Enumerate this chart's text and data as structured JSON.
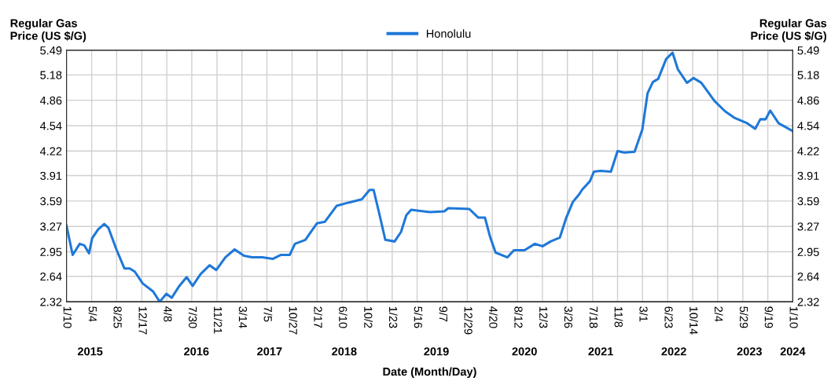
{
  "chart_data": {
    "type": "line",
    "xlabel": "Date (Month/Day)",
    "ylabel": "Regular Gas\nPrice (US $/G)",
    "y2label": "Regular Gas\nPrice (US $/G)",
    "x": [
      "2015-01-10",
      "2015-02-07",
      "2015-03-11",
      "2015-04-01",
      "2015-04-22",
      "2015-05-06",
      "2015-06-02",
      "2015-06-30",
      "2015-07-19",
      "2015-08-24",
      "2015-09-29",
      "2015-10-23",
      "2015-11-15",
      "2015-12-21",
      "2016-02-06",
      "2016-03-07",
      "2016-04-06",
      "2016-04-30",
      "2016-06-04",
      "2016-07-07",
      "2016-08-03",
      "2016-09-08",
      "2016-10-19",
      "2016-11-18",
      "2016-12-29",
      "2017-02-09",
      "2017-03-23",
      "2017-04-28",
      "2017-06-14",
      "2017-07-31",
      "2017-09-05",
      "2017-10-16",
      "2017-11-09",
      "2017-12-26",
      "2018-02-17",
      "2018-03-25",
      "2018-05-17",
      "2018-07-09",
      "2018-09-07",
      "2018-10-13",
      "2018-10-31",
      "2018-11-24",
      "2018-12-23",
      "2019-02-03",
      "2019-03-04",
      "2019-03-28",
      "2019-04-19",
      "2019-05-15",
      "2019-07-13",
      "2019-09-16",
      "2019-10-04",
      "2020-01-07",
      "2020-02-17",
      "2020-03-18",
      "2020-04-11",
      "2020-05-05",
      "2020-06-28",
      "2020-07-27",
      "2020-09-13",
      "2020-10-30",
      "2020-12-04",
      "2021-01-09",
      "2021-02-20",
      "2021-03-21",
      "2021-04-20",
      "2021-05-20",
      "2021-05-31",
      "2021-07-06",
      "2021-07-24",
      "2021-08-23",
      "2021-10-09",
      "2021-11-08",
      "2021-12-08",
      "2022-01-24",
      "2022-02-28",
      "2022-03-24",
      "2022-04-17",
      "2022-05-11",
      "2022-06-16",
      "2022-07-15",
      "2022-08-08",
      "2022-09-18",
      "2022-10-18",
      "2022-11-22",
      "2023-01-21",
      "2023-03-10",
      "2023-04-20",
      "2023-06-18",
      "2023-07-24",
      "2023-08-16",
      "2023-09-09",
      "2023-09-30",
      "2023-11-07",
      "2024-01-10"
    ],
    "series": [
      {
        "name": "Honolulu",
        "color": "#1f78d8",
        "values": [
          3.28,
          2.91,
          3.05,
          3.03,
          2.93,
          3.12,
          3.23,
          3.3,
          3.25,
          2.98,
          2.74,
          2.74,
          2.7,
          2.55,
          2.45,
          2.32,
          2.42,
          2.37,
          2.52,
          2.63,
          2.52,
          2.67,
          2.78,
          2.72,
          2.88,
          2.98,
          2.9,
          2.88,
          2.88,
          2.86,
          2.91,
          2.91,
          3.05,
          3.1,
          3.31,
          3.33,
          3.53,
          3.57,
          3.61,
          3.73,
          3.73,
          3.45,
          3.1,
          3.08,
          3.2,
          3.41,
          3.48,
          3.47,
          3.45,
          3.46,
          3.5,
          3.49,
          3.38,
          3.38,
          3.13,
          2.94,
          2.88,
          2.97,
          2.97,
          3.05,
          3.02,
          3.08,
          3.13,
          3.38,
          3.58,
          3.68,
          3.73,
          3.84,
          3.96,
          3.97,
          3.96,
          4.22,
          4.2,
          4.21,
          4.49,
          4.95,
          5.09,
          5.13,
          5.38,
          5.46,
          5.25,
          5.08,
          5.14,
          5.08,
          4.85,
          4.72,
          4.64,
          4.57,
          4.5,
          4.62,
          4.62,
          4.73,
          4.57,
          4.47
        ]
      }
    ],
    "xlim": [
      "2015-01-10",
      "2024-01-10"
    ],
    "xticks": [
      {
        "value": "2015-01-10",
        "label": "1/10"
      },
      {
        "value": "2015-05-04",
        "label": "5/4"
      },
      {
        "value": "2015-08-25",
        "label": "8/25"
      },
      {
        "value": "2015-12-17",
        "label": "12/17"
      },
      {
        "value": "2016-04-08",
        "label": "4/8"
      },
      {
        "value": "2016-07-30",
        "label": "7/30"
      },
      {
        "value": "2016-11-21",
        "label": "11/21"
      },
      {
        "value": "2017-03-14",
        "label": "3/14"
      },
      {
        "value": "2017-07-05",
        "label": "7/5"
      },
      {
        "value": "2017-10-27",
        "label": "10/27"
      },
      {
        "value": "2018-02-17",
        "label": "2/17"
      },
      {
        "value": "2018-06-10",
        "label": "6/10"
      },
      {
        "value": "2018-10-02",
        "label": "10/2"
      },
      {
        "value": "2019-01-23",
        "label": "1/23"
      },
      {
        "value": "2019-05-16",
        "label": "5/16"
      },
      {
        "value": "2019-09-07",
        "label": "9/7"
      },
      {
        "value": "2019-12-29",
        "label": "12/29"
      },
      {
        "value": "2020-04-20",
        "label": "4/20"
      },
      {
        "value": "2020-08-12",
        "label": "8/12"
      },
      {
        "value": "2020-12-03",
        "label": "12/3"
      },
      {
        "value": "2021-03-26",
        "label": "3/26"
      },
      {
        "value": "2021-07-18",
        "label": "7/18"
      },
      {
        "value": "2021-11-08",
        "label": "11/8"
      },
      {
        "value": "2022-03-01",
        "label": "3/1"
      },
      {
        "value": "2022-06-23",
        "label": "6/23"
      },
      {
        "value": "2022-10-14",
        "label": "10/14"
      },
      {
        "value": "2023-02-04",
        "label": "2/4"
      },
      {
        "value": "2023-05-29",
        "label": "5/29"
      },
      {
        "value": "2023-09-19",
        "label": "9/19"
      },
      {
        "value": "2024-01-10",
        "label": "1/10"
      }
    ],
    "x2lim": [
      "2015-01-10",
      "2024-01-10"
    ],
    "x2ticks": [
      {
        "value": "2015-04-27",
        "label": "2015"
      },
      {
        "value": "2016-08-20",
        "label": "2016"
      },
      {
        "value": "2017-07-17",
        "label": "2017"
      },
      {
        "value": "2018-06-20",
        "label": "2018"
      },
      {
        "value": "2019-08-11",
        "label": "2019"
      },
      {
        "value": "2020-09-13",
        "label": "2020"
      },
      {
        "value": "2021-08-24",
        "label": "2021"
      },
      {
        "value": "2022-07-21",
        "label": "2022"
      },
      {
        "value": "2023-06-28",
        "label": "2023"
      },
      {
        "value": "2024-01-10",
        "label": "2024"
      }
    ],
    "ylim": [
      2.32,
      5.49
    ],
    "yticks": [
      2.32,
      2.64,
      2.95,
      3.27,
      3.59,
      3.91,
      4.22,
      4.54,
      4.86,
      5.18,
      5.49
    ],
    "y2lim": [
      2.32,
      5.49
    ],
    "y2ticks": [
      2.32,
      2.64,
      2.95,
      3.27,
      3.59,
      3.91,
      4.22,
      4.54,
      4.86,
      5.18,
      5.49
    ],
    "grid": true,
    "legend": "top",
    "line_style": "solid",
    "marker": "none"
  }
}
